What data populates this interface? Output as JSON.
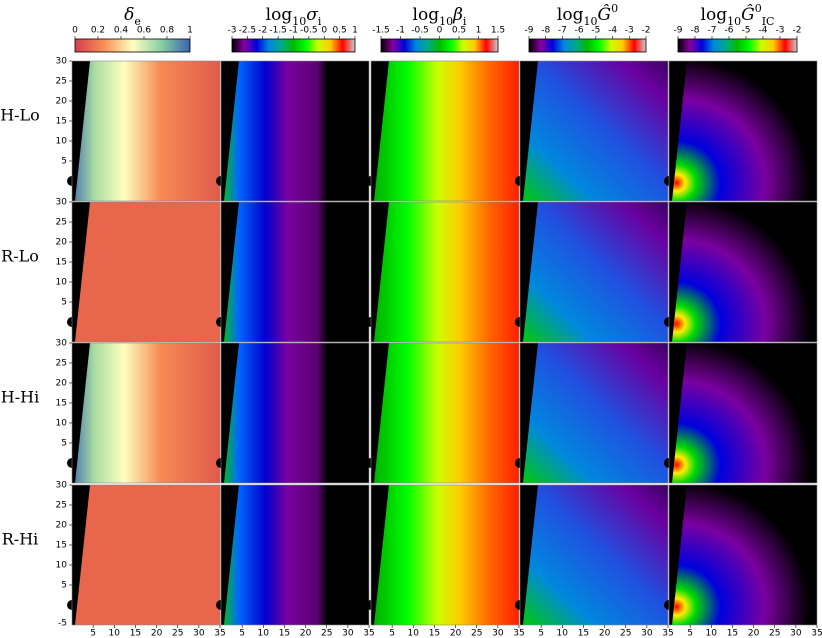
{
  "columns": [
    {
      "title": [
        {
          "t": "δ"
        },
        {
          "sub": "e"
        }
      ],
      "clim": [
        0,
        1
      ],
      "cticks": [
        0,
        0.2,
        0.4,
        0.6,
        0.8,
        1
      ]
    },
    {
      "title": [
        {
          "t": "log"
        },
        {
          "sub": "10"
        },
        {
          "t": "σ"
        },
        {
          "sub": "i"
        }
      ],
      "clim": [
        -3,
        1
      ],
      "cticks": [
        -3,
        -2.5,
        -2,
        -1.5,
        -1,
        -0.5,
        0,
        0.5,
        1
      ]
    },
    {
      "title": [
        {
          "t": "log"
        },
        {
          "sub": "10"
        },
        {
          "t": "β"
        },
        {
          "sub": "i"
        }
      ],
      "clim": [
        -1.5,
        1.5
      ],
      "cticks": [
        -1.5,
        -1,
        -0.5,
        0,
        0.5,
        1,
        1.5
      ]
    },
    {
      "title": [
        {
          "t": "log"
        },
        {
          "sub": "10"
        },
        {
          "t": "Ĝ"
        },
        {
          "sup": "0"
        }
      ],
      "clim": [
        -9,
        -2
      ],
      "cticks": [
        -9,
        -8,
        -7,
        -6,
        -5,
        -4,
        -3,
        -2
      ]
    },
    {
      "title": [
        {
          "t": "log"
        },
        {
          "sub": "10"
        },
        {
          "t": "Ĝ"
        },
        {
          "sup": "0"
        },
        {
          "sub": "IC"
        }
      ],
      "clim": [
        -9,
        -2
      ],
      "cticks": [
        -9,
        -8,
        -7,
        -6,
        -5,
        -4,
        -3,
        -2
      ]
    }
  ],
  "rows": [
    "H-Lo",
    "R-Lo",
    "H-Hi",
    "R-Hi"
  ],
  "xlim": [
    0,
    35
  ],
  "xticks": [
    5,
    10,
    15,
    20,
    25,
    30,
    35
  ],
  "ylim": [
    -5,
    30
  ],
  "yticks": [
    30,
    25,
    20,
    15,
    10,
    5
  ],
  "ybottom": -5
}
